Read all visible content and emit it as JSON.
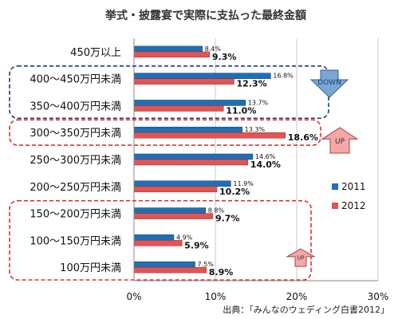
{
  "chart_data": {
    "type": "bar",
    "orientation": "horizontal",
    "title": "挙式・披露宴で実際に支払った最終金額",
    "categories": [
      "450万以上",
      "400〜450万円未満",
      "350〜400万円未満",
      "300〜350万円未満",
      "250〜300万円未満",
      "200〜250万円未満",
      "150〜200万円未満",
      "100〜150万円未満",
      "100万円未満"
    ],
    "series": [
      {
        "name": "2011",
        "color": "#1f6fb5",
        "values": [
          8.4,
          16.8,
          13.7,
          13.3,
          14.6,
          11.9,
          8.8,
          4.9,
          7.5
        ]
      },
      {
        "name": "2012",
        "color": "#e05555",
        "values": [
          9.3,
          12.3,
          11.0,
          18.6,
          14.0,
          10.2,
          9.7,
          5.9,
          8.9
        ]
      }
    ],
    "value_labels": {
      "2011": [
        "8.4%",
        "16.8%",
        "13.7%",
        "13.3%",
        "14.6%",
        "11.9%",
        "8.8%",
        "4.9%",
        "7.5%"
      ],
      "2012": [
        "9.3%",
        "12.3%",
        "11.0%",
        "18.6%",
        "14.0%",
        "10.2%",
        "9.7%",
        "5.9%",
        "8.9%"
      ]
    },
    "xlim": [
      0,
      30
    ],
    "xticks": [
      0,
      10,
      20,
      30
    ],
    "xtick_labels": [
      "0%",
      "10%",
      "20%",
      "30%"
    ],
    "grid": true,
    "legend_position": "right",
    "annotations": [
      {
        "text": "DOWN",
        "direction": "down",
        "color": "#1f3c6e",
        "group_categories": [
          "400〜450万円未満",
          "350〜400万円未満"
        ]
      },
      {
        "text": "UP",
        "direction": "up",
        "color": "#e03030",
        "group_categories": [
          "300〜350万円未満"
        ]
      },
      {
        "text": "UP",
        "direction": "up",
        "color": "#e03030",
        "group_categories": [
          "150〜200万円未満",
          "100〜150万円未満",
          "100万円未満"
        ]
      }
    ],
    "source": "出典：「みんなのウェディング白書2012」"
  }
}
